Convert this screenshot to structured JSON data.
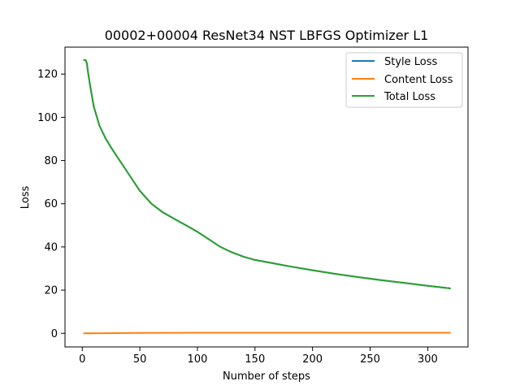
{
  "chart_data": {
    "type": "line",
    "title": "00002+00004 ResNet34 NST LBFGS Optimizer L1",
    "xlabel": "Number of steps",
    "ylabel": "Loss",
    "xlim": [
      -15,
      335
    ],
    "ylim": [
      -6.3,
      132.5
    ],
    "xticks": [
      0,
      50,
      100,
      150,
      200,
      250,
      300
    ],
    "yticks": [
      0,
      20,
      40,
      60,
      80,
      100,
      120
    ],
    "grid": false,
    "legend_position": "top-right",
    "series": [
      {
        "name": "Style Loss",
        "color": "#1f77b4",
        "x": [
          1,
          3,
          4,
          5,
          7,
          10,
          15,
          20,
          25,
          30,
          40,
          50,
          60,
          70,
          80,
          90,
          100,
          110,
          120,
          130,
          140,
          150,
          160,
          180,
          200,
          220,
          240,
          260,
          280,
          300,
          320
        ],
        "y": [
          126.5,
          126.5,
          125,
          121,
          114,
          105,
          96,
          90.5,
          86,
          82,
          74,
          66,
          60,
          56,
          53,
          50,
          47,
          43.5,
          40,
          37.5,
          35.5,
          34,
          33,
          31,
          29.2,
          27.5,
          26,
          24.6,
          23.3,
          22,
          20.8
        ]
      },
      {
        "name": "Content Loss",
        "color": "#ff7f0e",
        "x": [
          1,
          50,
          100,
          150,
          200,
          250,
          320
        ],
        "y": [
          0,
          0.2,
          0.3,
          0.3,
          0.3,
          0.3,
          0.3
        ]
      },
      {
        "name": "Total Loss",
        "color": "#2ca02c",
        "x": [
          1,
          3,
          4,
          5,
          7,
          10,
          15,
          20,
          25,
          30,
          40,
          50,
          60,
          70,
          80,
          90,
          100,
          110,
          120,
          130,
          140,
          150,
          160,
          180,
          200,
          220,
          240,
          260,
          280,
          300,
          320
        ],
        "y": [
          126.5,
          126.5,
          125,
          121,
          114,
          105,
          96,
          90.5,
          86,
          82,
          74,
          66,
          60,
          56,
          53,
          50,
          47,
          43.5,
          40,
          37.5,
          35.5,
          34,
          33,
          31,
          29.2,
          27.5,
          26,
          24.6,
          23.3,
          22,
          20.8
        ]
      }
    ]
  }
}
